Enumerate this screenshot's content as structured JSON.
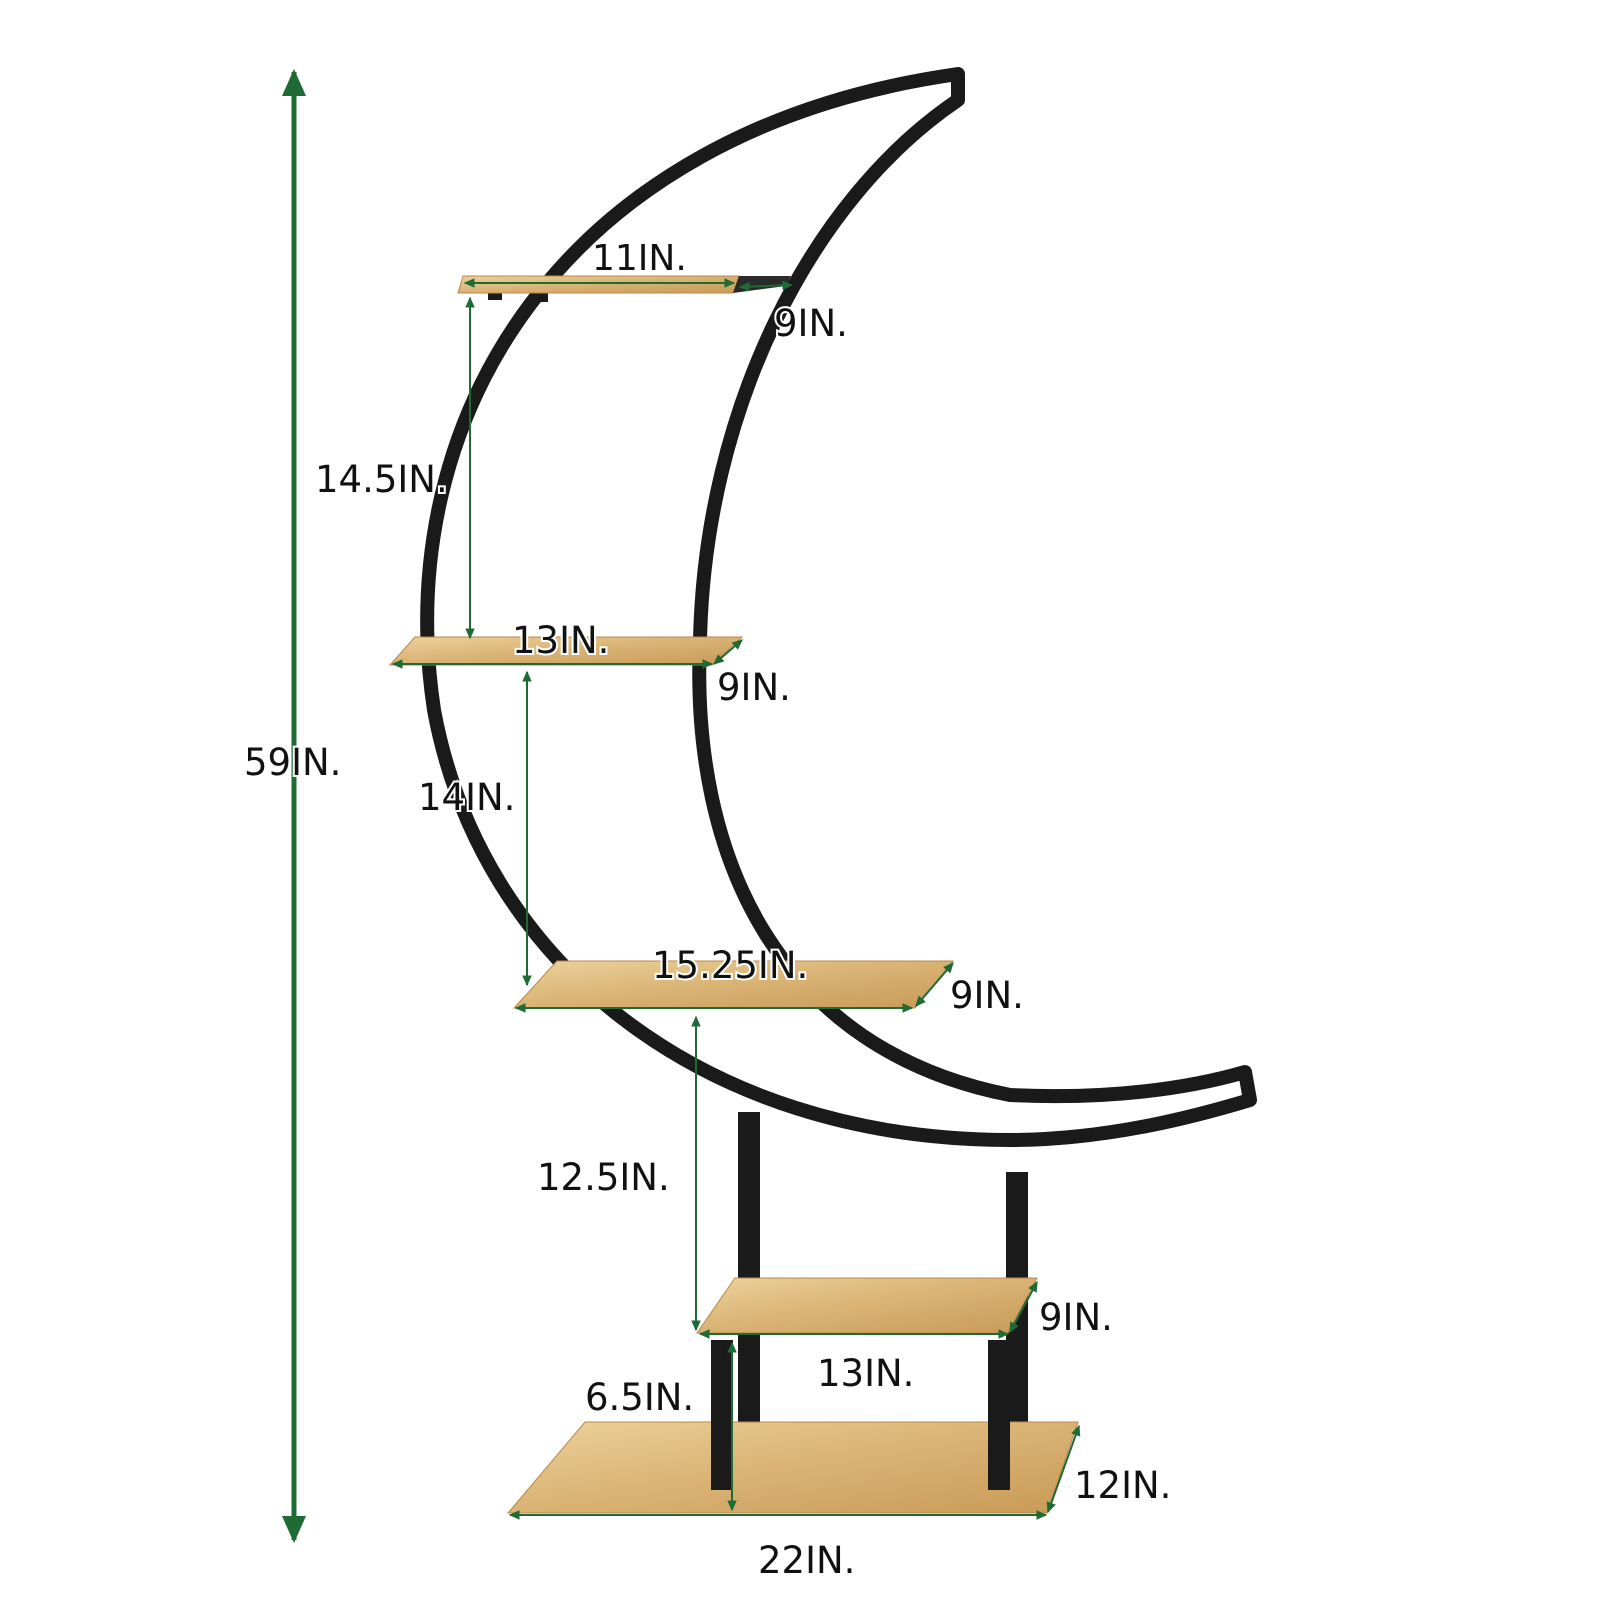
{
  "colors": {
    "background": "#ffffff",
    "frame": "#1a1a1a",
    "dimension": "#1f6b35",
    "wood_light": "#e6c88e",
    "wood_dark": "#c99a56",
    "text": "#111111"
  },
  "dimensions": {
    "total_height": "59IN.",
    "tier1_width": "11IN.",
    "tier1_depth": "9IN.",
    "gap1": "14.5IN.",
    "tier2_width": "13IN.",
    "tier2_depth": "9IN.",
    "gap2": "14IN.",
    "tier3_width": "15.25IN.",
    "tier3_depth": "9IN.",
    "gap3": "12.5IN.",
    "tier4_depth": "9IN.",
    "tier4_width": "13IN.",
    "gap4": "6.5IN.",
    "base_depth": "12IN.",
    "base_width": "22IN."
  }
}
